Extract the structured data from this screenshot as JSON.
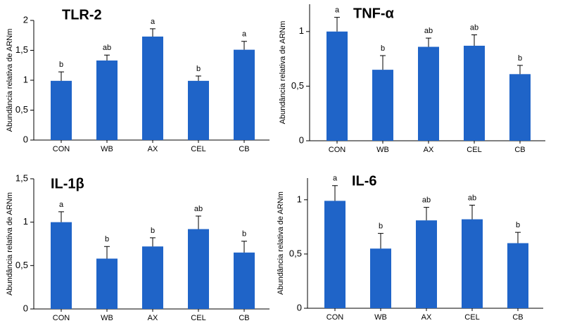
{
  "chart_data": [
    {
      "type": "bar",
      "title": "TLR-2",
      "y_label": "Abundância relativa de ARNm",
      "color": "#1f64c8",
      "categories": [
        "CON",
        "WB",
        "AX",
        "CEL",
        "CB"
      ],
      "values": [
        0.99,
        1.33,
        1.73,
        0.99,
        1.51
      ],
      "errors": [
        0.15,
        0.09,
        0.13,
        0.08,
        0.14
      ],
      "letters": [
        "b",
        "ab",
        "a",
        "b",
        "a"
      ],
      "ylim": [
        0,
        2
      ],
      "yticks": [
        0,
        {
          "value": 0.5,
          "label": "0,5"
        },
        1,
        {
          "value": 1.5,
          "label": "1,5"
        },
        2
      ]
    },
    {
      "type": "bar",
      "title": "TNF-α",
      "y_label": "Abundância relativa de ARNm",
      "color": "#1f64c8",
      "categories": [
        "CON",
        "WB",
        "AX",
        "CEL",
        "CB"
      ],
      "values": [
        1.0,
        0.65,
        0.86,
        0.87,
        0.61
      ],
      "errors": [
        0.13,
        0.13,
        0.08,
        0.1,
        0.08
      ],
      "letters": [
        "a",
        "b",
        "ab",
        "ab",
        "b"
      ],
      "ylim": [
        0,
        1.25
      ],
      "yticks": [
        0,
        {
          "value": 0.5,
          "label": "0,5"
        },
        1
      ]
    },
    {
      "type": "bar",
      "title": "IL-1β",
      "y_label": "Abundância relativa de ARNm",
      "color": "#1f64c8",
      "categories": [
        "CON",
        "WB",
        "AX",
        "CEL",
        "CB"
      ],
      "values": [
        1.0,
        0.58,
        0.72,
        0.92,
        0.65
      ],
      "errors": [
        0.12,
        0.14,
        0.1,
        0.15,
        0.13
      ],
      "letters": [
        "a",
        "b",
        "b",
        "ab",
        "b"
      ],
      "ylim": [
        0,
        1.5
      ],
      "yticks": [
        0,
        {
          "value": 0.5,
          "label": "0,5"
        },
        1,
        {
          "value": 1.5,
          "label": "1,5"
        }
      ]
    },
    {
      "type": "bar",
      "title": "IL-6",
      "y_label": "Abundância relativa de ARNm",
      "color": "#1f64c8",
      "categories": [
        "CON",
        "WB",
        "AX",
        "CEL",
        "CB"
      ],
      "values": [
        0.99,
        0.55,
        0.81,
        0.82,
        0.6
      ],
      "errors": [
        0.14,
        0.14,
        0.12,
        0.13,
        0.1
      ],
      "letters": [
        "a",
        "b",
        "ab",
        "ab",
        "b"
      ],
      "ylim": [
        0,
        1.2
      ],
      "yticks": [
        0,
        {
          "value": 0.5,
          "label": "0,5"
        },
        1
      ]
    }
  ]
}
